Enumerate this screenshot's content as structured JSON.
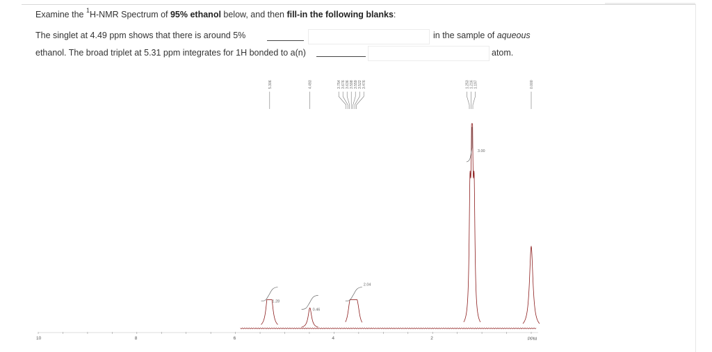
{
  "question": {
    "prefix": "Examine the ",
    "sup": "1",
    "middle1": "H-NMR Spectrum of ",
    "bold1": "95% ethanol",
    "middle2": " below, and then ",
    "bold2": "fill-in the following blanks",
    "suffix": ":"
  },
  "sentence1": {
    "text": "The singlet at 4.49 ppm shows that there is around 5%",
    "after": "in the sample of ",
    "after_italic": "aqueous",
    "answer_value": ""
  },
  "sentence2": {
    "text": "ethanol. The broad triplet at 5.31 ppm integrates for 1H bonded to a(n)",
    "after": "atom.",
    "answer_value": ""
  },
  "colors": {
    "spectrum": "#8b1a1a",
    "integral": "#666666",
    "axis": "#555555"
  },
  "chart_data": {
    "type": "line",
    "xlabel": "PPM",
    "xlim": [
      10,
      0
    ],
    "x_ticks": [
      "10",
      "8",
      "6",
      "4",
      "2"
    ],
    "peak_labels": [
      {
        "ppm": 5.306,
        "labels": [
          "5.306"
        ]
      },
      {
        "ppm": 4.493,
        "labels": [
          "4.493"
        ]
      },
      {
        "ppm": 3.65,
        "labels": [
          "3.754",
          "3.676",
          "3.636",
          "3.598",
          "3.559",
          "3.522",
          "3.476"
        ]
      },
      {
        "ppm": 1.22,
        "labels": [
          "1.253",
          "1.216",
          "1.197"
        ]
      },
      {
        "ppm": 0.0,
        "labels": [
          "0.000"
        ]
      }
    ],
    "integrations": [
      {
        "ppm": 5.31,
        "value": "1.28"
      },
      {
        "ppm": 4.49,
        "value": "0.46"
      },
      {
        "ppm": 3.6,
        "value": "2.04"
      },
      {
        "ppm": 1.2,
        "value": "3.00"
      }
    ],
    "peaks": [
      {
        "ppm": 5.31,
        "height": 0.14,
        "shape": "triplet"
      },
      {
        "ppm": 4.49,
        "height": 0.1,
        "shape": "singlet"
      },
      {
        "ppm": 3.6,
        "height": 0.14,
        "shape": "quartet"
      },
      {
        "ppm": 1.2,
        "height": 1.0,
        "shape": "triplet"
      },
      {
        "ppm": 0.0,
        "height": 0.4,
        "shape": "singlet"
      }
    ]
  }
}
